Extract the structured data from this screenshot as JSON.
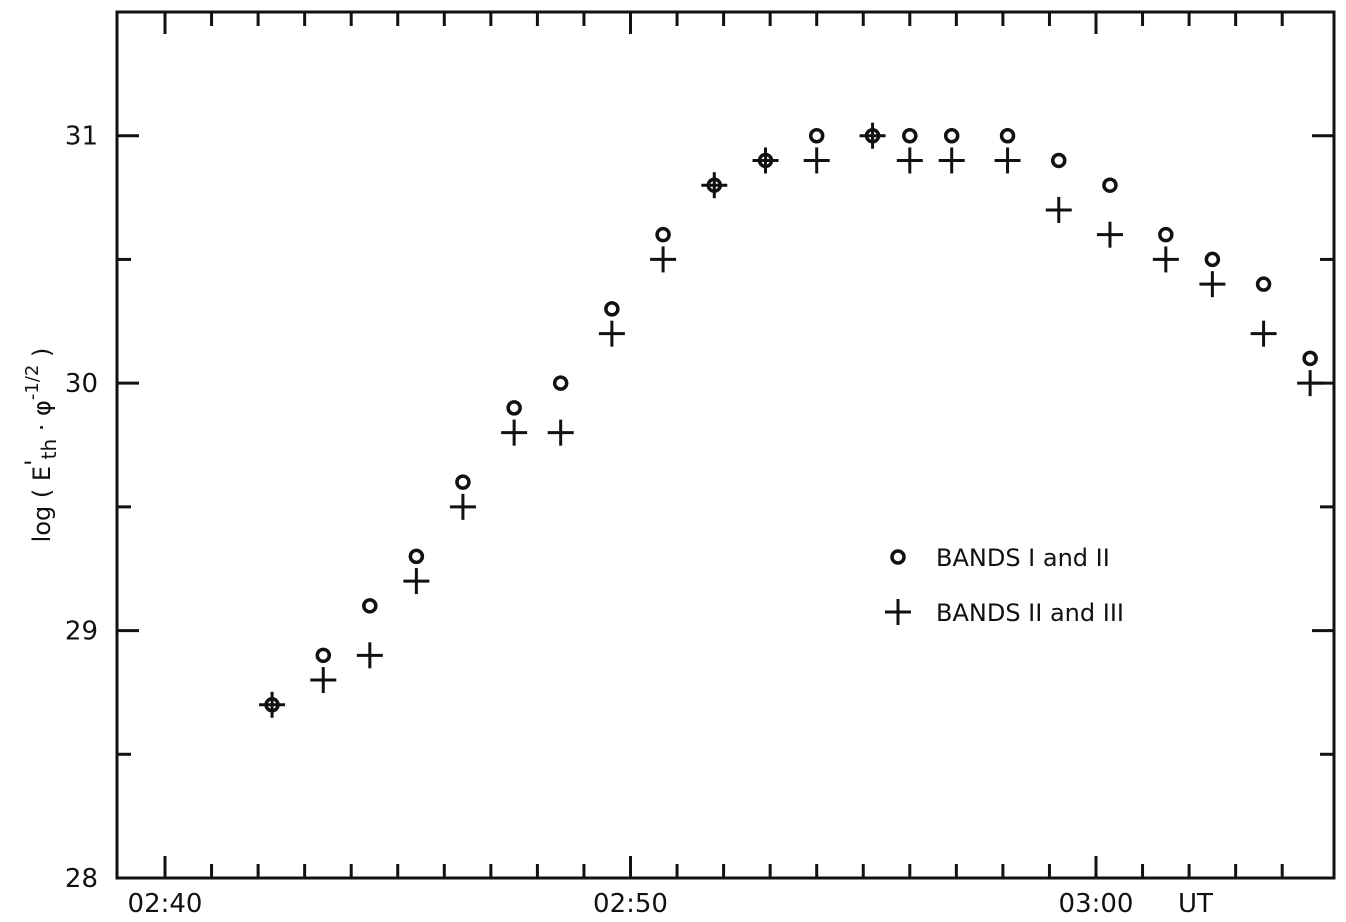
{
  "chart_data": {
    "type": "scatter",
    "title": "",
    "xlabel": "UT",
    "ylabel": "log ( E'th · φ^-1/2 )",
    "ylabel_parts": {
      "prefix": "log ( E",
      "prime": "'",
      "sub": "th",
      "mid": " · φ",
      "sup": "-1/2",
      "suffix": " )"
    },
    "xlim": [
      0,
      24.6
    ],
    "ylim": [
      28,
      31.5
    ],
    "x_ticks": [
      {
        "value": 0,
        "label": "02:40"
      },
      {
        "value": 10,
        "label": "02:50"
      },
      {
        "value": 20,
        "label": "03:00"
      }
    ],
    "x_unit_label": "UT",
    "y_ticks": [
      {
        "value": 28,
        "label": "28"
      },
      {
        "value": 29,
        "label": "29"
      },
      {
        "value": 30,
        "label": "30"
      },
      {
        "value": 31,
        "label": "31"
      }
    ],
    "grid": false,
    "legend_position": "center-right",
    "series": [
      {
        "name": "BANDS I and II",
        "marker": "circle",
        "x": [
          2.3,
          3.4,
          4.4,
          5.4,
          6.4,
          7.5,
          8.5,
          9.6,
          10.7,
          11.8,
          12.9,
          14.0,
          15.2,
          16.0,
          16.9,
          18.1,
          19.2,
          20.3,
          21.5,
          22.5,
          23.6,
          24.6
        ],
        "y": [
          28.7,
          28.9,
          29.1,
          29.3,
          29.6,
          29.9,
          30.0,
          30.3,
          30.6,
          30.8,
          30.9,
          31.0,
          31.0,
          31.0,
          31.0,
          31.0,
          30.9,
          30.8,
          30.6,
          30.5,
          30.4,
          30.1
        ]
      },
      {
        "name": "BANDS II and III",
        "marker": "plus",
        "x": [
          2.3,
          3.4,
          4.4,
          5.4,
          6.4,
          7.5,
          8.5,
          9.6,
          10.7,
          11.8,
          12.9,
          14.0,
          15.2,
          16.0,
          16.9,
          18.1,
          19.2,
          20.3,
          21.5,
          22.5,
          23.6,
          24.6
        ],
        "y": [
          28.7,
          28.8,
          28.9,
          29.2,
          29.5,
          29.8,
          29.8,
          30.2,
          30.5,
          30.8,
          30.9,
          30.9,
          31.0,
          30.9,
          30.9,
          30.9,
          30.7,
          30.6,
          30.5,
          30.4,
          30.2,
          30.0
        ]
      }
    ],
    "legend": {
      "entries": [
        {
          "marker": "circle",
          "label": "BANDS I and II"
        },
        {
          "marker": "plus",
          "label": "BANDS II and III"
        }
      ]
    }
  }
}
